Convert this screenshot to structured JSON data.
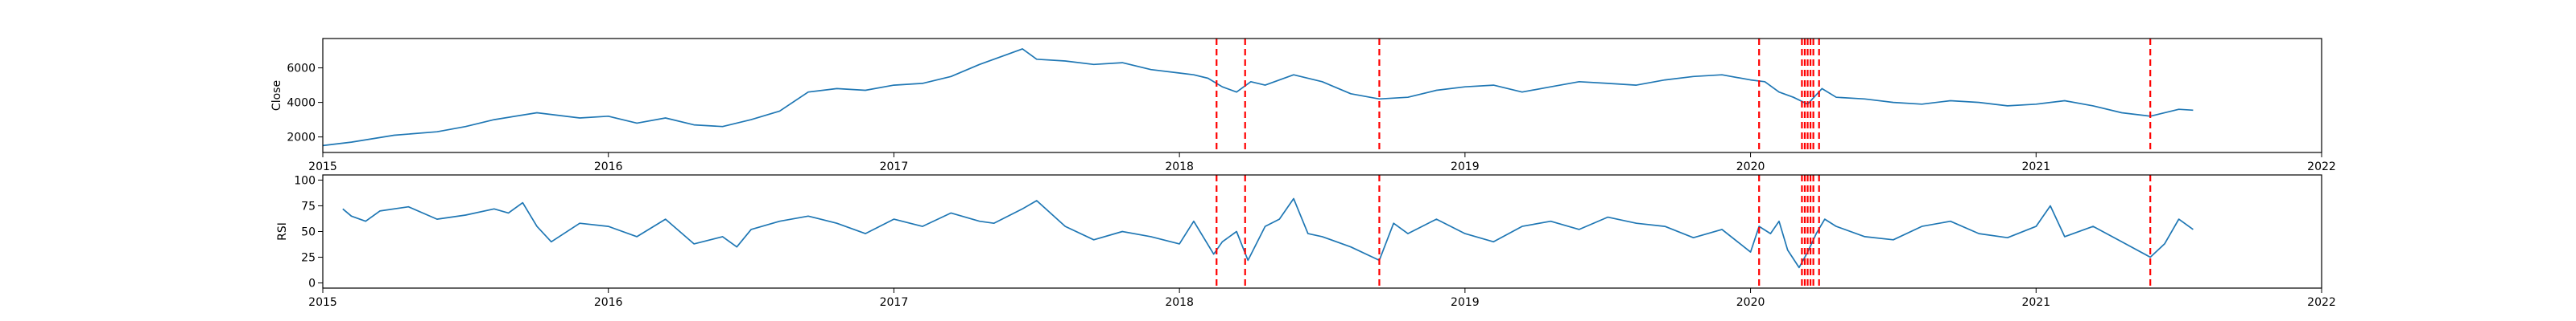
{
  "chart_data": [
    {
      "type": "line",
      "title": "",
      "xlabel": "",
      "ylabel": "Close",
      "xlim": [
        2015.0,
        2022.0
      ],
      "ylim": [
        1100,
        7700
      ],
      "xticks": [
        2015,
        2016,
        2017,
        2018,
        2019,
        2020,
        2021,
        2022
      ],
      "yticks": [
        2000,
        4000,
        6000
      ],
      "grid": false,
      "color": "#1f77b4",
      "series": [
        {
          "x": [
            2015.0,
            2015.1,
            2015.25,
            2015.4,
            2015.5,
            2015.6,
            2015.75,
            2015.9,
            2016.0,
            2016.1,
            2016.2,
            2016.3,
            2016.4,
            2016.5,
            2016.6,
            2016.7,
            2016.8,
            2016.9,
            2017.0,
            2017.1,
            2017.2,
            2017.3,
            2017.4,
            2017.45,
            2017.5,
            2017.6,
            2017.7,
            2017.8,
            2017.9,
            2018.0,
            2018.05,
            2018.1,
            2018.15,
            2018.2,
            2018.25,
            2018.3,
            2018.4,
            2018.5,
            2018.6,
            2018.7,
            2018.8,
            2018.9,
            2019.0,
            2019.1,
            2019.2,
            2019.3,
            2019.4,
            2019.5,
            2019.6,
            2019.7,
            2019.8,
            2019.9,
            2020.0,
            2020.05,
            2020.1,
            2020.15,
            2020.2,
            2020.25,
            2020.3,
            2020.4,
            2020.5,
            2020.6,
            2020.7,
            2020.8,
            2020.9,
            2021.0,
            2021.1,
            2021.2,
            2021.3,
            2021.4,
            2021.5,
            2021.55
          ],
          "y": [
            1500,
            1700,
            2100,
            2300,
            2600,
            3000,
            3400,
            3100,
            3200,
            2800,
            3100,
            2700,
            2600,
            3000,
            3500,
            4600,
            4800,
            4700,
            5000,
            5100,
            5500,
            6200,
            6800,
            7100,
            6500,
            6400,
            6200,
            6300,
            5900,
            5700,
            5600,
            5400,
            4900,
            4600,
            5200,
            5000,
            5600,
            5200,
            4500,
            4200,
            4300,
            4700,
            4900,
            5000,
            4600,
            4900,
            5200,
            5100,
            5000,
            5300,
            5500,
            5600,
            5300,
            5200,
            4600,
            4300,
            3900,
            4800,
            4300,
            4200,
            4000,
            3900,
            4100,
            4000,
            3800,
            3900,
            4100,
            3800,
            3400,
            3200,
            3600,
            3550
          ]
        }
      ],
      "vlines": [
        2018.13,
        2018.23,
        2018.7,
        2020.03,
        2020.18,
        2020.19,
        2020.2,
        2020.21,
        2020.22,
        2020.24,
        2021.4
      ],
      "vline_color": "#ff0000"
    },
    {
      "type": "line",
      "title": "",
      "xlabel": "",
      "ylabel": "RSI",
      "xlim": [
        2015.0,
        2022.0
      ],
      "ylim": [
        -5,
        105
      ],
      "xticks": [
        2015,
        2016,
        2017,
        2018,
        2019,
        2020,
        2021,
        2022
      ],
      "yticks": [
        0,
        25,
        50,
        75,
        100
      ],
      "grid": false,
      "color": "#1f77b4",
      "series": [
        {
          "x": [
            2015.07,
            2015.1,
            2015.15,
            2015.2,
            2015.3,
            2015.4,
            2015.5,
            2015.6,
            2015.65,
            2015.7,
            2015.75,
            2015.8,
            2015.9,
            2016.0,
            2016.1,
            2016.2,
            2016.3,
            2016.4,
            2016.45,
            2016.5,
            2016.6,
            2016.7,
            2016.8,
            2016.9,
            2017.0,
            2017.1,
            2017.2,
            2017.3,
            2017.35,
            2017.45,
            2017.5,
            2017.6,
            2017.7,
            2017.8,
            2017.9,
            2018.0,
            2018.05,
            2018.12,
            2018.15,
            2018.2,
            2018.24,
            2018.3,
            2018.35,
            2018.4,
            2018.45,
            2018.5,
            2018.6,
            2018.7,
            2018.75,
            2018.8,
            2018.9,
            2019.0,
            2019.1,
            2019.2,
            2019.3,
            2019.4,
            2019.5,
            2019.6,
            2019.7,
            2019.8,
            2019.9,
            2020.0,
            2020.03,
            2020.07,
            2020.1,
            2020.13,
            2020.17,
            2020.2,
            2020.23,
            2020.26,
            2020.3,
            2020.4,
            2020.5,
            2020.6,
            2020.7,
            2020.8,
            2020.9,
            2021.0,
            2021.05,
            2021.1,
            2021.2,
            2021.3,
            2021.4,
            2021.45,
            2021.5,
            2021.55
          ],
          "y": [
            72,
            65,
            60,
            70,
            74,
            62,
            66,
            72,
            68,
            78,
            55,
            40,
            58,
            55,
            45,
            62,
            38,
            45,
            35,
            52,
            60,
            65,
            58,
            48,
            62,
            55,
            68,
            60,
            58,
            72,
            80,
            55,
            42,
            50,
            45,
            38,
            60,
            28,
            40,
            50,
            22,
            55,
            62,
            82,
            48,
            45,
            35,
            22,
            58,
            48,
            62,
            48,
            40,
            55,
            60,
            52,
            64,
            58,
            55,
            44,
            52,
            30,
            55,
            48,
            60,
            32,
            15,
            30,
            48,
            62,
            55,
            45,
            42,
            55,
            60,
            48,
            44,
            55,
            75,
            45,
            55,
            40,
            25,
            38,
            62,
            52
          ]
        }
      ],
      "vlines": [
        2018.13,
        2018.23,
        2018.7,
        2020.03,
        2020.18,
        2020.19,
        2020.2,
        2020.21,
        2020.22,
        2020.24,
        2021.4
      ],
      "vline_color": "#ff0000"
    }
  ]
}
